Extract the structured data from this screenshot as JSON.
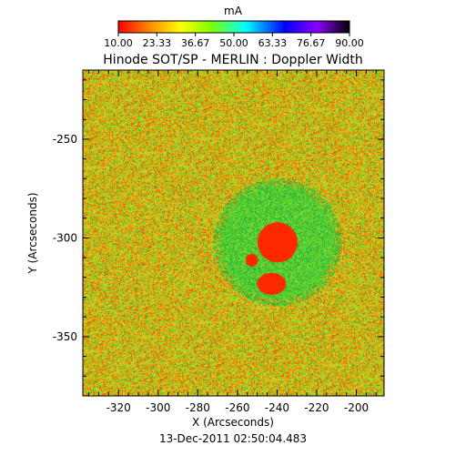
{
  "colorbar": {
    "unit": "mA",
    "tick_labels": [
      "10.00",
      "23.33",
      "36.67",
      "50.00",
      "63.33",
      "76.67",
      "90.00"
    ],
    "colors": [
      "#ff0000",
      "#ff8c00",
      "#ffff00",
      "#7fff00",
      "#00ffff",
      "#0000ff",
      "#8b00ff",
      "#000000"
    ]
  },
  "plot": {
    "title": "Hinode SOT/SP - MERLIN : Doppler Width",
    "x_label": "X (Arcseconds)",
    "y_label": "Y (Arcseconds)",
    "x_ticks": [
      "-320",
      "-300",
      "-280",
      "-260",
      "-240",
      "-220",
      "-200"
    ],
    "y_ticks": [
      "-250",
      "-300",
      "-350"
    ],
    "timestamp": "13-Dec-2011 02:50:04.483"
  },
  "chart_data": {
    "type": "heatmap",
    "title": "Hinode SOT/SP - MERLIN : Doppler Width",
    "xlabel": "X (Arcseconds)",
    "ylabel": "Y (Arcseconds)",
    "xlim": [
      -338,
      -186
    ],
    "ylim": [
      -380,
      -215
    ],
    "value_range": [
      10.0,
      90.0
    ],
    "units": "mA",
    "features": {
      "umbra_main": {
        "x": -240,
        "y": -302
      },
      "umbra_small": {
        "x": -253,
        "y": -311
      },
      "umbra_south": {
        "x": -243,
        "y": -323
      }
    }
  }
}
